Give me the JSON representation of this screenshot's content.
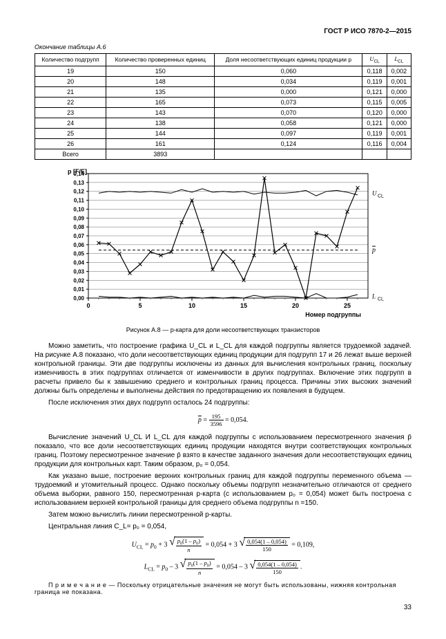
{
  "doc_header": "ГОСТ Р ИСО 7870-2—2015",
  "table_caption": "Окончание таблицы А.6",
  "table": {
    "columns": [
      "Количество подгрупп",
      "Количество проверенных единиц",
      "Доля несоответствующих единиц продукции p",
      "U_CL",
      "L_CL"
    ],
    "rows": [
      [
        "19",
        "150",
        "0,060",
        "0,118",
        "0,002"
      ],
      [
        "20",
        "148",
        "0,034",
        "0,119",
        "0,001"
      ],
      [
        "21",
        "135",
        "0,000",
        "0,121",
        "0,000"
      ],
      [
        "22",
        "165",
        "0,073",
        "0,115",
        "0,005"
      ],
      [
        "23",
        "143",
        "0,070",
        "0,120",
        "0,000"
      ],
      [
        "24",
        "138",
        "0,058",
        "0,121",
        "0,000"
      ],
      [
        "25",
        "144",
        "0,097",
        "0,119",
        "0,001"
      ],
      [
        "26",
        "161",
        "0,124",
        "0,116",
        "0,004"
      ],
      [
        "Всего",
        "3893",
        "",
        "",
        ""
      ]
    ]
  },
  "chart": {
    "type": "line",
    "x": [
      1,
      2,
      3,
      4,
      5,
      6,
      7,
      8,
      9,
      10,
      11,
      12,
      13,
      14,
      15,
      16,
      17,
      18,
      19,
      20,
      21,
      22,
      23,
      24,
      25,
      26
    ],
    "p": [
      0.062,
      0.061,
      0.05,
      0.028,
      0.038,
      0.052,
      0.048,
      0.052,
      0.085,
      0.11,
      0.075,
      0.032,
      0.052,
      0.041,
      0.02,
      0.048,
      0.135,
      0.051,
      0.06,
      0.034,
      0.0,
      0.073,
      0.07,
      0.058,
      0.097,
      0.124
    ],
    "ucl": [
      0.118,
      0.12,
      0.119,
      0.12,
      0.119,
      0.12,
      0.119,
      0.118,
      0.122,
      0.119,
      0.123,
      0.119,
      0.12,
      0.119,
      0.12,
      0.117,
      0.119,
      0.118,
      0.118,
      0.119,
      0.121,
      0.115,
      0.12,
      0.121,
      0.119,
      0.116
    ],
    "lcl": [
      0.002,
      0.001,
      0.001,
      0.0,
      0.001,
      0.0,
      0.001,
      0.002,
      0.0,
      0.001,
      0.0,
      0.001,
      0.0,
      0.001,
      0.0,
      0.003,
      0.001,
      0.002,
      0.002,
      0.001,
      0.0,
      0.005,
      0.0,
      0.0,
      0.001,
      0.004
    ],
    "pbar": 0.054,
    "xlim": [
      0,
      27
    ],
    "ylim": [
      0,
      0.14
    ],
    "ytick_step": 0.01,
    "xtick_step": 5,
    "colors": {
      "p": "#000000",
      "ucl": "#000000",
      "lcl": "#000000",
      "pbar": "#000000",
      "grid": "#000000",
      "bg": "#ffffff"
    },
    "marker": "x",
    "marker_size": 5,
    "line_width": 1.2,
    "pbar_dash": "4,3",
    "ylabel": "p [F/E]",
    "xlabel": "Номер подгруппы",
    "label_fontsize": 9,
    "right_labels": {
      "ucl": "U_CL",
      "pbar": "p̄",
      "lcl": "L_CL"
    }
  },
  "chart_caption": "Рисунок А.8 — p-карта для доли несоответствующих транзисторов",
  "para1": "Можно заметить, что построение графика U_CL и L_CL для каждой подгруппы является трудоемкой задачей. На рисунке А.8 показано, что доли несоответствующих единиц продукции для подгрупп 17 и 26 лежат выше верхней контрольной границы. Эти две подгруппы исключены из данных для вычисления контрольных границ, поскольку изменчивость в этих подгруппах отличается от изменчивости в других подгруппах. Включение этих подгрупп в расчеты привело бы к завышению среднего и контрольных границ процесса. Причины этих высоких значений должны быть определены и выполнены действия по предотвращению их появления в будущем.",
  "para2": "После исключения этих двух подгрупп осталось  24 подгруппы:",
  "formula1": {
    "pbar": "p̄",
    "num": "195",
    "den": "3596",
    "result": "0,054"
  },
  "para3": "Вычисление значений U_CL И L_CL для каждой подгруппы с использованием пересмотренного значения p̄ показало, что все доли несоответствующих единиц продукции находятся внутри соответствующих контрольных границ. Поэтому пересмотренное значение p̄ взято в качестве заданного значения доли несоответствующих единиц продукции для контрольных карт. Таким образом, p₀ = 0,054.",
  "para4": "Как указано выше, построение верхних контрольных границ для каждой подгруппы переменного объема — трудоемкий и утомительный процесс. Однако поскольку объемы подгрупп незначительно отличаются от среднего объема выборки, равного 150, пересмотренная p-карта (с использованием p₀ = 0,054) может быть построена с использованием верхней контрольной границы для среднего объема подгруппы n =150.",
  "para5": "Затем можно вычислить линии пересмотренной p-карты.",
  "para6": "Центральная линия C_L= p₀ = 0,054,",
  "formula2": {
    "label": "U_CL",
    "p0": "0,054",
    "one_minus": "1 – 0,054",
    "n": "150",
    "result": "0,109"
  },
  "formula3": {
    "label": "L_CL",
    "p0": "0,054",
    "one_minus": "1 – 0,054",
    "n": "150"
  },
  "note_prefix": "П р и м е ч а н и е   —  ",
  "note_body": "Поскольку отрицательные значения не могут быть использованы, нижняя контрольная граница  не показана.",
  "page_num": "33"
}
